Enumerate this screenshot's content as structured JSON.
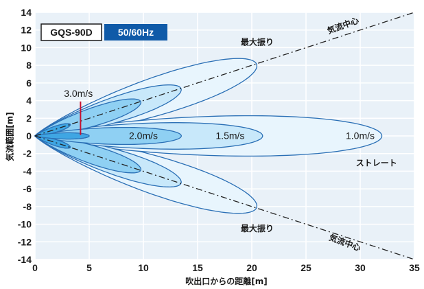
{
  "chart_data": {
    "type": "area",
    "xlabel": "吹出口からの距離[m]",
    "ylabel": "気流範囲[m]",
    "xlim": [
      0,
      35
    ],
    "ylim": [
      -14,
      14
    ],
    "xticks": [
      0,
      5,
      10,
      15,
      20,
      25,
      30,
      35
    ],
    "yticks": [
      14,
      12,
      10,
      8,
      6,
      4,
      2,
      0,
      -2,
      -4,
      -6,
      -8,
      -10,
      -12,
      -14
    ],
    "grid": true,
    "model": "GQS-90D",
    "frequency": "50/60Hz",
    "annotations": {
      "top_swing": "最大振り",
      "bottom_swing": "最大振り",
      "straight": "ストレート",
      "centerline_top": "気流中心",
      "centerline_bottom": "気流中心"
    },
    "centerlines": [
      {
        "from": [
          0,
          0
        ],
        "to": [
          35,
          14
        ]
      },
      {
        "from": [
          0,
          0
        ],
        "to": [
          35,
          -14
        ]
      }
    ],
    "series": [
      {
        "name": "1.0m/s",
        "fill": "#e8f5fd",
        "reach_straight": 32,
        "reach_swing": 22
      },
      {
        "name": "1.5m/s",
        "fill": "#c8e8fa",
        "reach_straight": 21,
        "reach_swing": 14.5
      },
      {
        "name": "2.0m/s",
        "fill": "#8fd0f3",
        "reach_straight": 13.5,
        "reach_swing": 10.5
      },
      {
        "name": "3.0m/s",
        "fill": "#3fa6e3",
        "reach_straight": 5,
        "reach_swing": 3.5
      }
    ],
    "colors": {
      "outline": "#2a6fb5",
      "centerline": "#222222",
      "marker": "#c8102e",
      "badge_bg": "#0f5aa8",
      "panel_bg": "#e9f1f8"
    }
  }
}
